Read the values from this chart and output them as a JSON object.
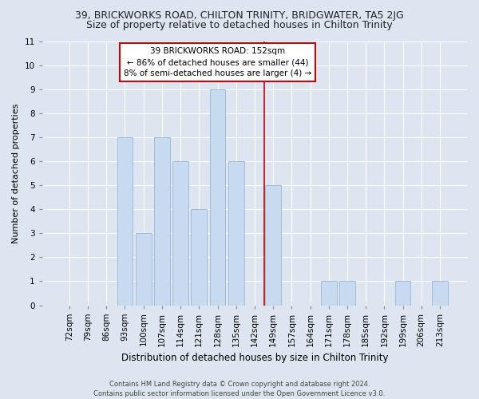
{
  "title": "39, BRICKWORKS ROAD, CHILTON TRINITY, BRIDGWATER, TA5 2JG",
  "subtitle": "Size of property relative to detached houses in Chilton Trinity",
  "xlabel": "Distribution of detached houses by size in Chilton Trinity",
  "ylabel": "Number of detached properties",
  "categories": [
    "72sqm",
    "79sqm",
    "86sqm",
    "93sqm",
    "100sqm",
    "107sqm",
    "114sqm",
    "121sqm",
    "128sqm",
    "135sqm",
    "142sqm",
    "149sqm",
    "157sqm",
    "164sqm",
    "171sqm",
    "178sqm",
    "185sqm",
    "192sqm",
    "199sqm",
    "206sqm",
    "213sqm"
  ],
  "values": [
    0,
    0,
    0,
    7,
    3,
    7,
    6,
    4,
    9,
    6,
    0,
    5,
    0,
    0,
    1,
    1,
    0,
    0,
    1,
    0,
    1
  ],
  "bar_color": "#c8daf0",
  "bar_edge_color": "#a0bcd8",
  "vline_x_index": 11,
  "vline_color": "#cc0000",
  "ylim": [
    0,
    11
  ],
  "yticks": [
    0,
    1,
    2,
    3,
    4,
    5,
    6,
    7,
    8,
    9,
    10,
    11
  ],
  "annotation_text": "39 BRICKWORKS ROAD: 152sqm\n← 86% of detached houses are smaller (44)\n8% of semi-detached houses are larger (4) →",
  "annotation_box_color": "#cc0000",
  "footer_line1": "Contains HM Land Registry data © Crown copyright and database right 2024.",
  "footer_line2": "Contains public sector information licensed under the Open Government Licence v3.0.",
  "background_color": "#dde6f0",
  "plot_bg_color": "#dde6f0",
  "title_fontsize": 9,
  "subtitle_fontsize": 9,
  "tick_fontsize": 7.5,
  "ylabel_fontsize": 8,
  "xlabel_fontsize": 8.5
}
